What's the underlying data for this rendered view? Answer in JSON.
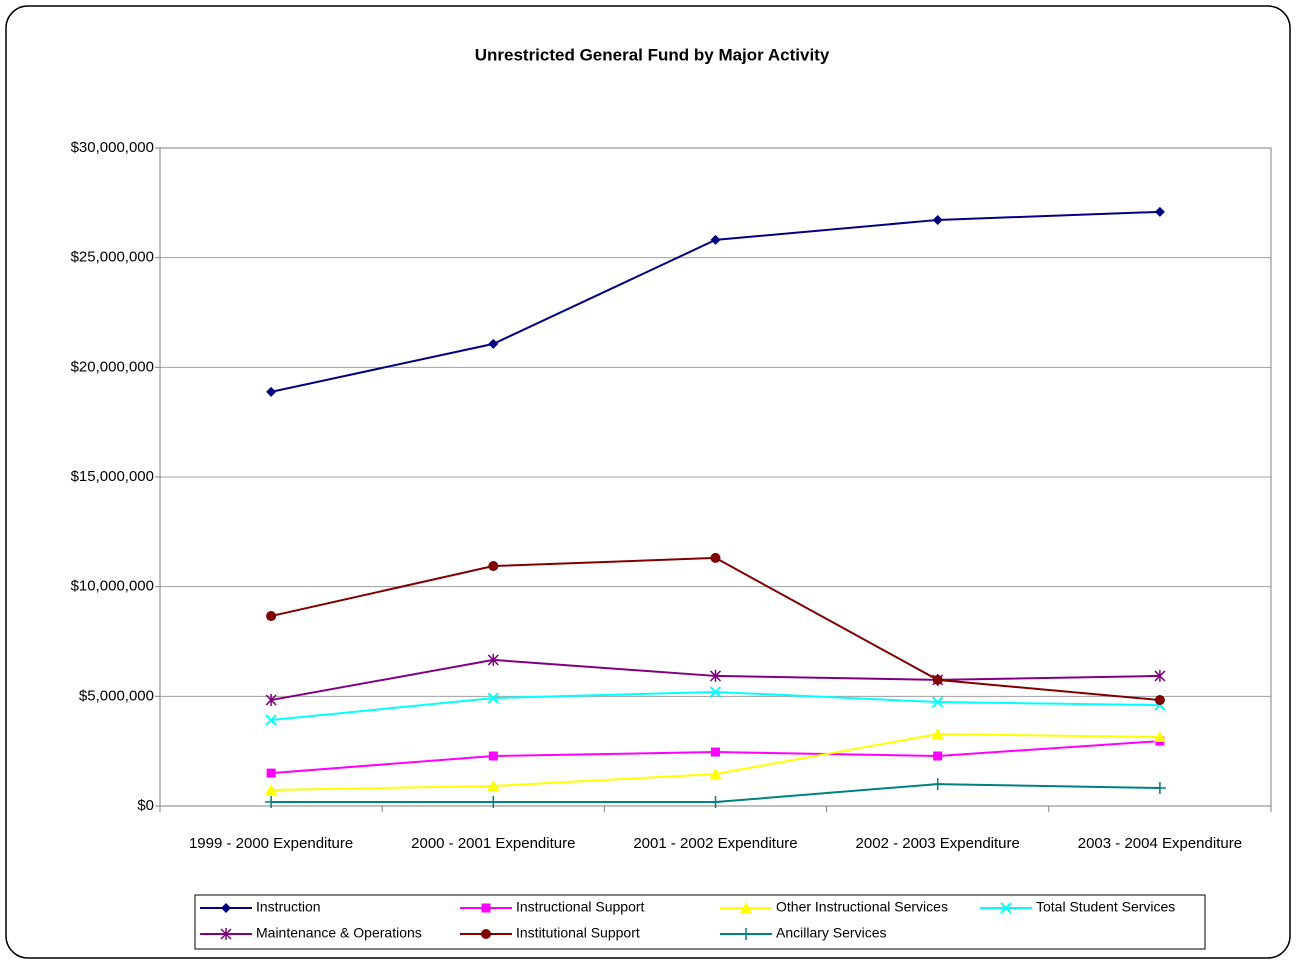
{
  "chart_data": {
    "type": "line",
    "title": "Unrestricted General Fund by Major Activity",
    "categories": [
      "1999 - 2000 Expenditure",
      "2000 - 2001 Expenditure",
      "2001 - 2002 Expenditure",
      "2002 - 2003 Expenditure",
      "2003 - 2004 Expenditure"
    ],
    "ylim": [
      0,
      30000000
    ],
    "yticks": [
      {
        "value": 0,
        "label": "$0"
      },
      {
        "value": 5000000,
        "label": "$5,000,000"
      },
      {
        "value": 10000000,
        "label": "$10,000,000"
      },
      {
        "value": 15000000,
        "label": "$15,000,000"
      },
      {
        "value": 20000000,
        "label": "$20,000,000"
      },
      {
        "value": 25000000,
        "label": "$25,000,000"
      },
      {
        "value": 30000000,
        "label": "$30,000,000"
      }
    ],
    "grid": true,
    "legend": "bottom",
    "series": [
      {
        "name": "Instruction",
        "color": "#000080",
        "marker": "diamond",
        "values": [
          18880000,
          21070000,
          25810000,
          26720000,
          27090000
        ]
      },
      {
        "name": "Instructional Support",
        "color": "#ff00ff",
        "marker": "square",
        "values": [
          1500000,
          2280000,
          2460000,
          2280000,
          2960000
        ]
      },
      {
        "name": "Other Instructional Services",
        "color": "#ffff00",
        "marker": "triangle",
        "values": [
          730000,
          910000,
          1460000,
          3280000,
          3150000
        ]
      },
      {
        "name": "Total Student Services",
        "color": "#00ffff",
        "marker": "x",
        "values": [
          3920000,
          4920000,
          5200000,
          4740000,
          4600000
        ]
      },
      {
        "name": "Maintenance & Operations",
        "color": "#800080",
        "marker": "asterisk",
        "values": [
          4830000,
          6660000,
          5930000,
          5750000,
          5930000
        ]
      },
      {
        "name": "Institutional Support",
        "color": "#800000",
        "marker": "circle",
        "values": [
          8660000,
          10940000,
          11310000,
          5750000,
          4830000
        ]
      },
      {
        "name": "Ancillary Services",
        "color": "#008080",
        "marker": "plus",
        "values": [
          180000,
          180000,
          180000,
          1000000,
          820000
        ]
      }
    ]
  }
}
